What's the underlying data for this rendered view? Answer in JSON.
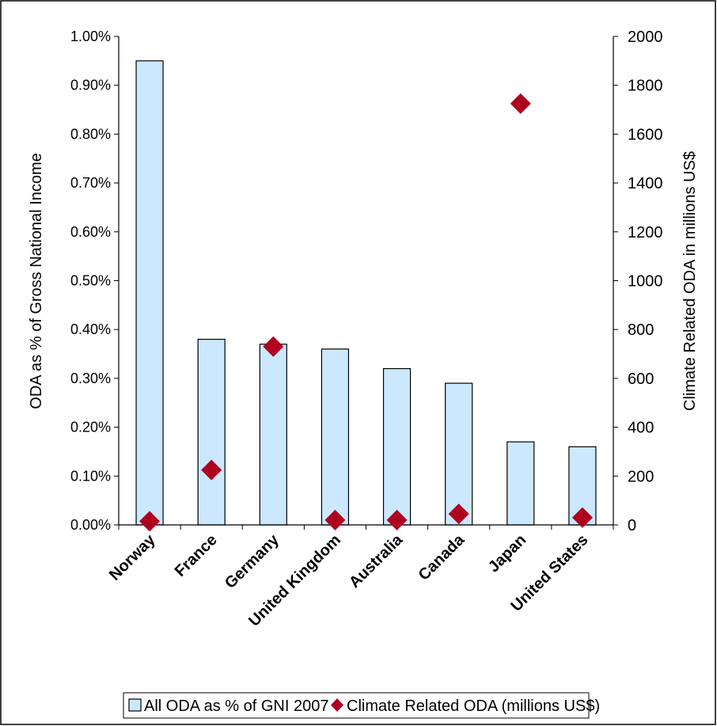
{
  "chart_data": {
    "type": "bar",
    "categories": [
      "Norway",
      "France",
      "Germany",
      "United Kingdom",
      "Australia",
      "Canada",
      "Japan",
      "United States"
    ],
    "series": [
      {
        "name": "All ODA as % of GNI 2007",
        "axis": "left",
        "kind": "bar",
        "color": "#cce8ff",
        "values": [
          0.95,
          0.38,
          0.37,
          0.36,
          0.32,
          0.29,
          0.17,
          0.16
        ]
      },
      {
        "name": "Climate Related ODA (millions US$)",
        "axis": "right",
        "kind": "scatter",
        "marker": "diamond",
        "color": "#b00020",
        "values": [
          15,
          225,
          730,
          20,
          20,
          45,
          1725,
          30
        ]
      }
    ],
    "ylabel": "ODA as % of Gross National Income",
    "y2label": "Climate Related ODA in millions US$",
    "ylim": [
      0,
      1.0
    ],
    "y2lim": [
      0,
      2000
    ],
    "yticks": [
      "0.00%",
      "0.10%",
      "0.20%",
      "0.30%",
      "0.40%",
      "0.50%",
      "0.60%",
      "0.70%",
      "0.80%",
      "0.90%",
      "1.00%"
    ],
    "y2ticks": [
      "0",
      "200",
      "400",
      "600",
      "800",
      "1000",
      "1200",
      "1400",
      "1600",
      "1800",
      "2000"
    ],
    "grid": false,
    "legend": "bottom"
  }
}
